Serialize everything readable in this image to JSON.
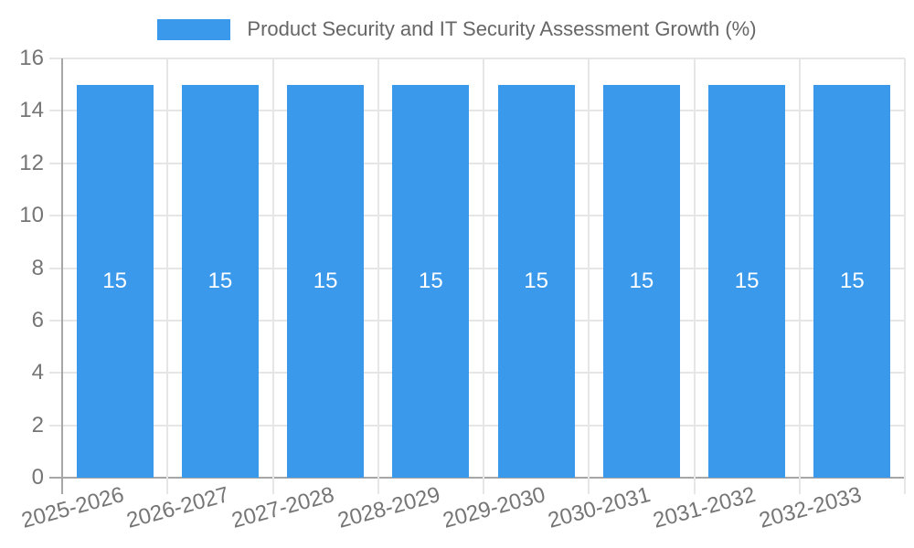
{
  "chart_data": {
    "type": "bar",
    "title": "Product Security and IT Security Assessment Growth (%)",
    "categories": [
      "2025-2026",
      "2026-2027",
      "2027-2028",
      "2028-2029",
      "2029-2030",
      "2030-2031",
      "2031-2032",
      "2032-2033"
    ],
    "values": [
      15,
      15,
      15,
      15,
      15,
      15,
      15,
      15
    ],
    "bar_labels": [
      "15",
      "15",
      "15",
      "15",
      "15",
      "15",
      "15",
      "15"
    ],
    "xlabel": "",
    "ylabel": "",
    "ylim": [
      0,
      16
    ],
    "yticks": [
      0,
      2,
      4,
      6,
      8,
      10,
      12,
      14,
      16
    ],
    "grid": true,
    "legend_position": "top-center",
    "x_label_rotation_deg": -15,
    "colors": {
      "bar": "#3b99ec",
      "bar_value_label": "#ffffff",
      "gridline": "#e6e6e6",
      "axis_line": "#a6a6a6",
      "tick_label": "#757575",
      "legend_label": "#666666"
    }
  }
}
